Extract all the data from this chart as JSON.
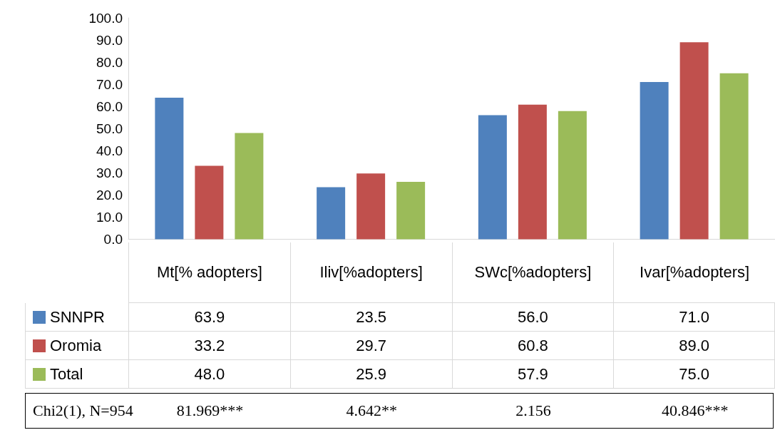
{
  "chart_data": {
    "type": "bar",
    "categories": [
      "Mt[% adopters]",
      "Iliv[%adopters]",
      "SWc[%adopters]",
      "Ivar[%adopters]"
    ],
    "series": [
      {
        "name": "SNNPR",
        "color": "#4f81bd",
        "values": [
          63.9,
          23.5,
          56.0,
          71.0
        ]
      },
      {
        "name": "Oromia",
        "color": "#c0504d",
        "values": [
          33.2,
          29.7,
          60.8,
          89.0
        ]
      },
      {
        "name": "Total",
        "color": "#9bbb59",
        "values": [
          48.0,
          25.9,
          57.9,
          75.0
        ]
      }
    ],
    "ylim": [
      0,
      100
    ],
    "yticks": [
      {
        "value": 0,
        "label": "0.0"
      },
      {
        "value": 10,
        "label": "10.0"
      },
      {
        "value": 20,
        "label": "20.0"
      },
      {
        "value": 30,
        "label": "30.0"
      },
      {
        "value": 40,
        "label": "40.0"
      },
      {
        "value": 50,
        "label": "50.0"
      },
      {
        "value": 60,
        "label": "60.0"
      },
      {
        "value": 70,
        "label": "70.0"
      },
      {
        "value": 80,
        "label": "80.0"
      },
      {
        "value": 90,
        "label": "90.0"
      },
      {
        "value": 100,
        "label": "100.0"
      }
    ],
    "value_labels": [
      [
        "63.9",
        "23.5",
        "56.0",
        "71.0"
      ],
      [
        "33.2",
        "29.7",
        "60.8",
        "89.0"
      ],
      [
        "48.0",
        "25.9",
        "57.9",
        "75.0"
      ]
    ],
    "legend": "bottom left",
    "grid": false,
    "annotations": [
      "Chi2(1), N=954",
      "81.969***",
      "4.642**",
      "2.156",
      "40.846***"
    ]
  }
}
